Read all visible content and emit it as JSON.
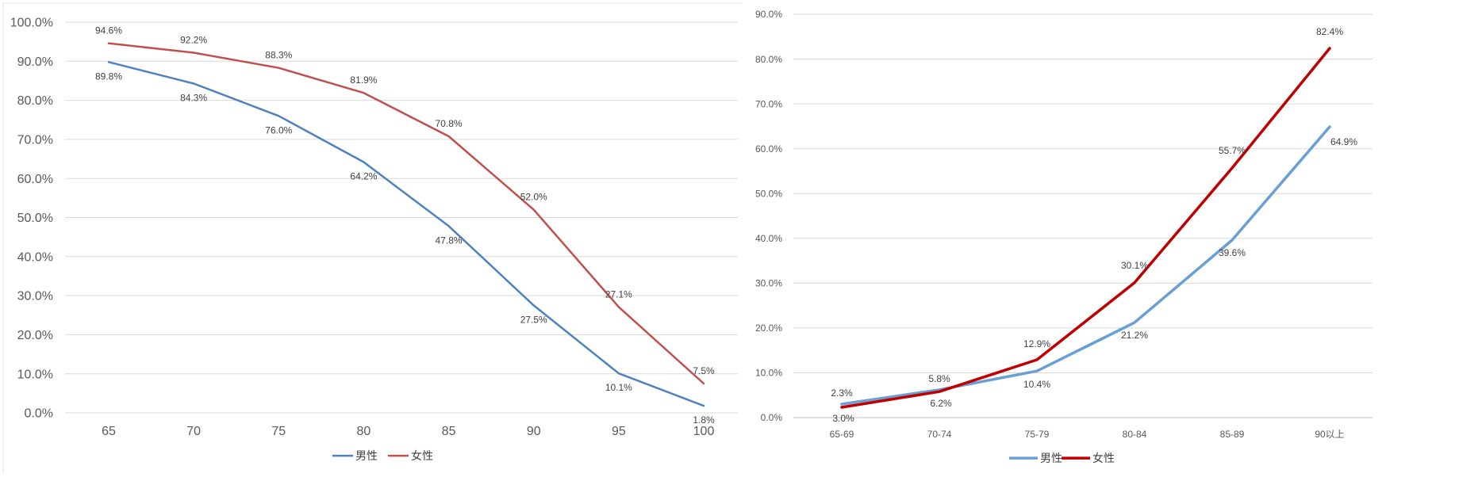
{
  "chart_data": [
    {
      "type": "line",
      "categories": [
        "65",
        "70",
        "75",
        "80",
        "85",
        "90",
        "95",
        "100"
      ],
      "series": [
        {
          "name": "男性",
          "color": "#4f81bd",
          "values": [
            89.8,
            84.3,
            76.0,
            64.2,
            47.8,
            27.5,
            10.1,
            1.8
          ],
          "labels": [
            "89.8%",
            "84.3%",
            "76.0%",
            "64.2%",
            "47.8%",
            "27.5%",
            "10.1%",
            "1.8%"
          ]
        },
        {
          "name": "女性",
          "color": "#c0504d",
          "values": [
            94.6,
            92.2,
            88.3,
            81.9,
            70.8,
            52.0,
            27.1,
            7.5
          ],
          "labels": [
            "94.6%",
            "92.2%",
            "88.3%",
            "81.9%",
            "70.8%",
            "52.0%",
            "27.1%",
            "7.5%"
          ]
        }
      ],
      "ylim": [
        0,
        100
      ],
      "yticks": [
        "0.0%",
        "10.0%",
        "20.0%",
        "30.0%",
        "40.0%",
        "50.0%",
        "60.0%",
        "70.0%",
        "80.0%",
        "90.0%",
        "100.0%"
      ],
      "grid": true,
      "legend": "bottom-center"
    },
    {
      "type": "line",
      "categories": [
        "65-69",
        "70-74",
        "75-79",
        "80-84",
        "85-89",
        "90以上"
      ],
      "series": [
        {
          "name": "男性",
          "color": "#6a9fd4",
          "values": [
            3.0,
            6.2,
            10.4,
            21.2,
            39.6,
            64.9
          ],
          "labels": [
            "3.0%",
            "6.2%",
            "10.4%",
            "21.2%",
            "39.6%",
            "64.9%"
          ]
        },
        {
          "name": "女性",
          "color": "#c00000",
          "values": [
            2.3,
            5.8,
            12.9,
            30.1,
            55.7,
            82.4
          ],
          "labels": [
            "2.3%",
            "5.8%",
            "12.9%",
            "30.1%",
            "55.7%",
            "82.4%"
          ]
        }
      ],
      "ylim": [
        0,
        90
      ],
      "yticks": [
        "0.0%",
        "10.0%",
        "20.0%",
        "30.0%",
        "40.0%",
        "50.0%",
        "60.0%",
        "70.0%",
        "80.0%",
        "90.0%"
      ],
      "grid": true,
      "legend": "bottom-center"
    }
  ]
}
